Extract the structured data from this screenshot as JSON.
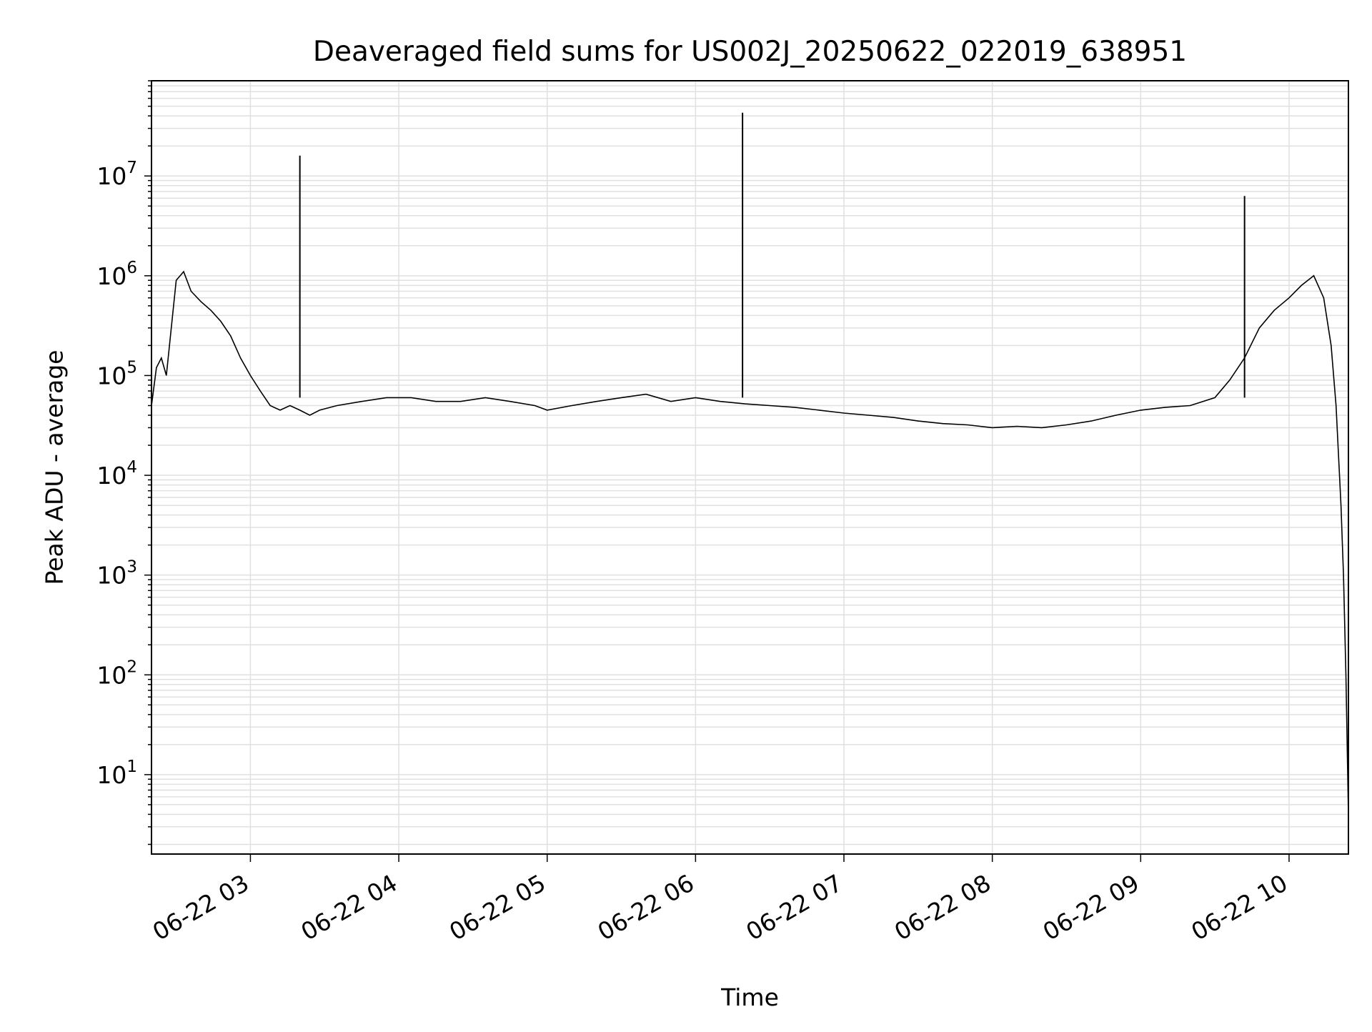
{
  "chart_data": {
    "type": "line",
    "title": "Deaveraged field sums for US002J_20250622_022019_638951",
    "xlabel": "Time",
    "ylabel": "Peak ADU - average",
    "xlim": [
      "2025-06-22 02:20",
      "2025-06-22 10:24"
    ],
    "ylim": [
      1.6,
      90000000
    ],
    "yscale": "log",
    "grid": true,
    "line_color": "#000000",
    "grid_color": "#e0e0e0",
    "x_ticks": [
      {
        "value": "2025-06-22 03:00",
        "label": "06-22 03"
      },
      {
        "value": "2025-06-22 04:00",
        "label": "06-22 04"
      },
      {
        "value": "2025-06-22 05:00",
        "label": "06-22 05"
      },
      {
        "value": "2025-06-22 06:00",
        "label": "06-22 06"
      },
      {
        "value": "2025-06-22 07:00",
        "label": "06-22 07"
      },
      {
        "value": "2025-06-22 08:00",
        "label": "06-22 08"
      },
      {
        "value": "2025-06-22 09:00",
        "label": "06-22 09"
      },
      {
        "value": "2025-06-22 10:00",
        "label": "06-22 10"
      }
    ],
    "y_ticks": [
      {
        "value": 10,
        "base": "10",
        "exp": "1"
      },
      {
        "value": 100,
        "base": "10",
        "exp": "2"
      },
      {
        "value": 1000,
        "base": "10",
        "exp": "3"
      },
      {
        "value": 10000,
        "base": "10",
        "exp": "4"
      },
      {
        "value": 100000,
        "base": "10",
        "exp": "5"
      },
      {
        "value": 1000000,
        "base": "10",
        "exp": "6"
      },
      {
        "value": 10000000,
        "base": "10",
        "exp": "7"
      }
    ],
    "series": [
      {
        "x": [
          "2025-06-22 02:20",
          "2025-06-22 02:22",
          "2025-06-22 02:24",
          "2025-06-22 02:26",
          "2025-06-22 02:28",
          "2025-06-22 02:30",
          "2025-06-22 02:33",
          "2025-06-22 02:36",
          "2025-06-22 02:40",
          "2025-06-22 02:44",
          "2025-06-22 02:48",
          "2025-06-22 02:52",
          "2025-06-22 02:56",
          "2025-06-22 03:00",
          "2025-06-22 03:04",
          "2025-06-22 03:08",
          "2025-06-22 03:12",
          "2025-06-22 03:16",
          "2025-06-22 03:20",
          "2025-06-22 03:24",
          "2025-06-22 03:28",
          "2025-06-22 03:35",
          "2025-06-22 03:45",
          "2025-06-22 03:55",
          "2025-06-22 04:05",
          "2025-06-22 04:15",
          "2025-06-22 04:25",
          "2025-06-22 04:35",
          "2025-06-22 04:45",
          "2025-06-22 04:55",
          "2025-06-22 05:00",
          "2025-06-22 05:10",
          "2025-06-22 05:20",
          "2025-06-22 05:30",
          "2025-06-22 05:40",
          "2025-06-22 05:50",
          "2025-06-22 06:00",
          "2025-06-22 06:10",
          "2025-06-22 06:20",
          "2025-06-22 06:30",
          "2025-06-22 06:40",
          "2025-06-22 06:50",
          "2025-06-22 07:00",
          "2025-06-22 07:10",
          "2025-06-22 07:20",
          "2025-06-22 07:30",
          "2025-06-22 07:40",
          "2025-06-22 07:50",
          "2025-06-22 08:00",
          "2025-06-22 08:10",
          "2025-06-22 08:20",
          "2025-06-22 08:30",
          "2025-06-22 08:40",
          "2025-06-22 08:50",
          "2025-06-22 09:00",
          "2025-06-22 09:10",
          "2025-06-22 09:20",
          "2025-06-22 09:30",
          "2025-06-22 09:36",
          "2025-06-22 09:42",
          "2025-06-22 09:48",
          "2025-06-22 09:54",
          "2025-06-22 10:00",
          "2025-06-22 10:05",
          "2025-06-22 10:10",
          "2025-06-22 10:14",
          "2025-06-22 10:17",
          "2025-06-22 10:19",
          "2025-06-22 10:21",
          "2025-06-22 10:22",
          "2025-06-22 10:23",
          "2025-06-22 10:24"
        ],
        "y": [
          50000,
          120000,
          150000,
          100000,
          300000,
          900000,
          1100000,
          700000,
          550000,
          450000,
          350000,
          250000,
          150000,
          100000,
          70000,
          50000,
          45000,
          50000,
          45000,
          40000,
          45000,
          50000,
          55000,
          60000,
          60000,
          55000,
          55000,
          60000,
          55000,
          50000,
          45000,
          50000,
          55000,
          60000,
          65000,
          55000,
          60000,
          55000,
          52000,
          50000,
          48000,
          45000,
          42000,
          40000,
          38000,
          35000,
          33000,
          32000,
          30000,
          31000,
          30000,
          32000,
          35000,
          40000,
          45000,
          48000,
          50000,
          60000,
          90000,
          150000,
          300000,
          450000,
          600000,
          800000,
          1000000,
          600000,
          200000,
          50000,
          5000,
          1000,
          100,
          4
        ]
      }
    ],
    "spikes": [
      {
        "x": "2025-06-22 03:20",
        "y": 16000000
      },
      {
        "x": "2025-06-22 06:19",
        "y": 43000000
      },
      {
        "x": "2025-06-22 09:42",
        "y": 6300000
      }
    ]
  }
}
